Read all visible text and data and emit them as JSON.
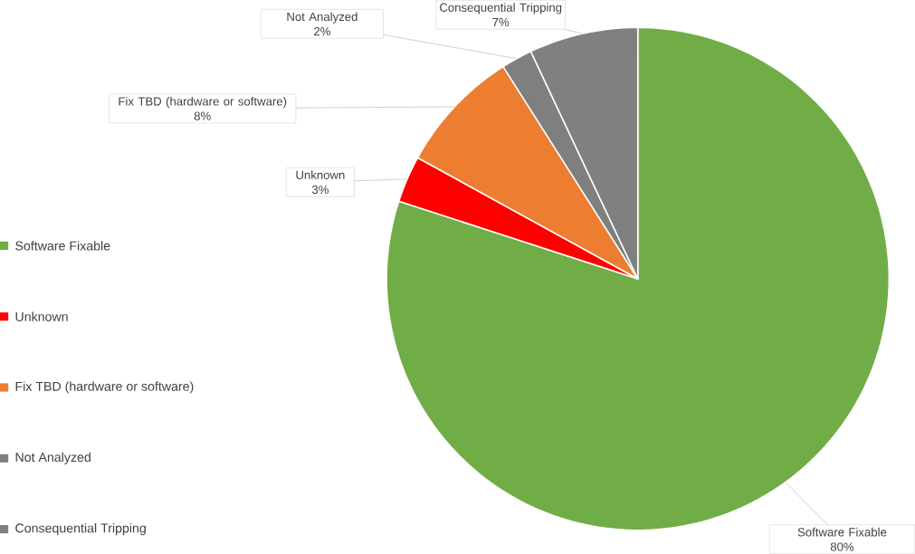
{
  "chart_data": {
    "type": "pie",
    "categories": [
      "Software Fixable",
      "Unknown",
      "Fix TBD (hardware or software)",
      "Not Analyzed",
      "Consequential Tripping"
    ],
    "values": [
      80,
      3,
      8,
      2,
      7
    ],
    "colors": [
      "#70ad47",
      "#ff0000",
      "#ed7d31",
      "#7f7f7f",
      "#808080"
    ],
    "value_labels": [
      "80%",
      "3%",
      "8%",
      "2%",
      "7%"
    ],
    "legend": "left"
  }
}
